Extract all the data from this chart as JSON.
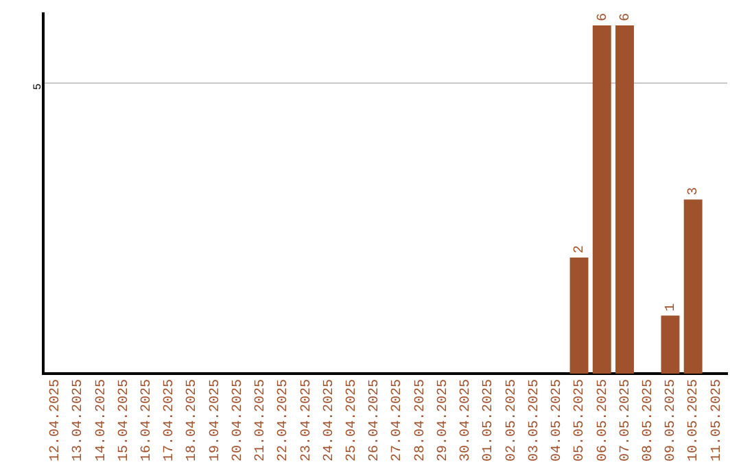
{
  "chart_data": {
    "type": "bar",
    "categories": [
      "12.04.2025",
      "13.04.2025",
      "14.04.2025",
      "15.04.2025",
      "16.04.2025",
      "17.04.2025",
      "18.04.2025",
      "19.04.2025",
      "20.04.2025",
      "21.04.2025",
      "22.04.2025",
      "23.04.2025",
      "24.04.2025",
      "25.04.2025",
      "26.04.2025",
      "27.04.2025",
      "28.04.2025",
      "29.04.2025",
      "30.04.2025",
      "01.05.2025",
      "02.05.2025",
      "03.05.2025",
      "04.05.2025",
      "05.05.2025",
      "06.05.2025",
      "07.05.2025",
      "08.05.2025",
      "09.05.2025",
      "10.05.2025",
      "11.05.2025"
    ],
    "values": [
      null,
      null,
      null,
      null,
      null,
      null,
      null,
      null,
      null,
      null,
      null,
      null,
      null,
      null,
      null,
      null,
      null,
      null,
      null,
      null,
      null,
      null,
      null,
      2,
      6,
      6,
      null,
      1,
      3,
      null
    ],
    "data_labels": true,
    "color": "#a0522d",
    "ylim": [
      0,
      6.2
    ],
    "yticks": [
      5
    ],
    "grid": "y"
  }
}
